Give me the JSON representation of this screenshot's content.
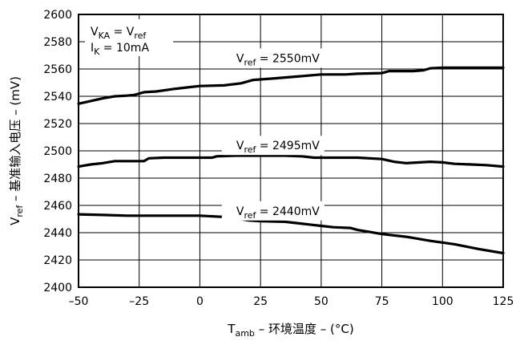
{
  "chart_data": {
    "type": "line",
    "xlabel": {
      "main": "T",
      "sub": "amb",
      "rest": " – 环境温度 – (°C)"
    },
    "ylabel": {
      "main": "V",
      "sub": "ref",
      "rest": " – 基准输入电压 – (mV)"
    },
    "xlim": [
      -50,
      125
    ],
    "ylim": [
      2400,
      2600
    ],
    "x_ticks": [
      -50,
      -25,
      0,
      25,
      50,
      75,
      100,
      125
    ],
    "x_tick_labels": [
      "–50",
      "–25",
      "0",
      "25",
      "50",
      "75",
      "100",
      "125"
    ],
    "y_ticks": [
      2400,
      2420,
      2440,
      2460,
      2480,
      2500,
      2520,
      2540,
      2560,
      2580,
      2600
    ],
    "y_tick_labels": [
      "2400",
      "2420",
      "2440",
      "2460",
      "2480",
      "2500",
      "2520",
      "2540",
      "2560",
      "2580",
      "2600"
    ],
    "grid": true,
    "conditions": [
      {
        "main": "V",
        "sub": "KA",
        "rest": " = V",
        "sub2": "ref"
      },
      {
        "main": "I",
        "sub": "K",
        "rest": " = 10mA",
        "sub2": ""
      }
    ],
    "series": [
      {
        "name": {
          "main": "V",
          "sub": "ref",
          "rest": " = 2550mV"
        },
        "points": [
          [
            -50,
            2534.5
          ],
          [
            -45,
            2536.5
          ],
          [
            -40,
            2538.5
          ],
          [
            -35,
            2540
          ],
          [
            -30,
            2540.5
          ],
          [
            -27,
            2541
          ],
          [
            -23,
            2543
          ],
          [
            -18,
            2543.5
          ],
          [
            -10,
            2545.5
          ],
          [
            -5,
            2546.5
          ],
          [
            0,
            2547.5
          ],
          [
            10,
            2548
          ],
          [
            17,
            2549.5
          ],
          [
            22,
            2552
          ],
          [
            30,
            2553
          ],
          [
            40,
            2554.5
          ],
          [
            50,
            2556
          ],
          [
            60,
            2556
          ],
          [
            65,
            2556.5
          ],
          [
            75,
            2557
          ],
          [
            78,
            2558.5
          ],
          [
            88,
            2558.5
          ],
          [
            92,
            2559
          ],
          [
            95,
            2560.5
          ],
          [
            100,
            2561
          ],
          [
            110,
            2561
          ],
          [
            125,
            2561
          ]
        ]
      },
      {
        "name": {
          "main": "V",
          "sub": "ref",
          "rest": " = 2495mV"
        },
        "points": [
          [
            -50,
            2488.5
          ],
          [
            -45,
            2490
          ],
          [
            -40,
            2491
          ],
          [
            -35,
            2492.5
          ],
          [
            -25,
            2492.5
          ],
          [
            -23,
            2492.5
          ],
          [
            -21,
            2494.5
          ],
          [
            -15,
            2495
          ],
          [
            0,
            2495
          ],
          [
            5,
            2495
          ],
          [
            7,
            2496
          ],
          [
            15,
            2496.5
          ],
          [
            25,
            2496.5
          ],
          [
            35,
            2496.5
          ],
          [
            42,
            2496
          ],
          [
            47,
            2495
          ],
          [
            55,
            2495
          ],
          [
            65,
            2495
          ],
          [
            75,
            2494
          ],
          [
            80,
            2492
          ],
          [
            85,
            2491
          ],
          [
            95,
            2492
          ],
          [
            100,
            2491.5
          ],
          [
            105,
            2490.5
          ],
          [
            112,
            2490
          ],
          [
            118,
            2489.5
          ],
          [
            125,
            2488.5
          ]
        ]
      },
      {
        "name": {
          "main": "V",
          "sub": "ref",
          "rest": " = 2440mV"
        },
        "points": [
          [
            -50,
            2453.5
          ],
          [
            -40,
            2453
          ],
          [
            -30,
            2452.5
          ],
          [
            -20,
            2452.5
          ],
          [
            -10,
            2452.5
          ],
          [
            0,
            2452.5
          ],
          [
            10,
            2451.5
          ],
          [
            15,
            2450.5
          ],
          [
            20,
            2449
          ],
          [
            25,
            2448.5
          ],
          [
            35,
            2448
          ],
          [
            45,
            2446
          ],
          [
            50,
            2445
          ],
          [
            55,
            2444
          ],
          [
            62,
            2443.5
          ],
          [
            65,
            2442
          ],
          [
            70,
            2440.5
          ],
          [
            75,
            2439
          ],
          [
            85,
            2437
          ],
          [
            95,
            2434
          ],
          [
            105,
            2431.5
          ],
          [
            115,
            2428
          ],
          [
            125,
            2425
          ]
        ]
      }
    ],
    "line_color": "#000000"
  }
}
